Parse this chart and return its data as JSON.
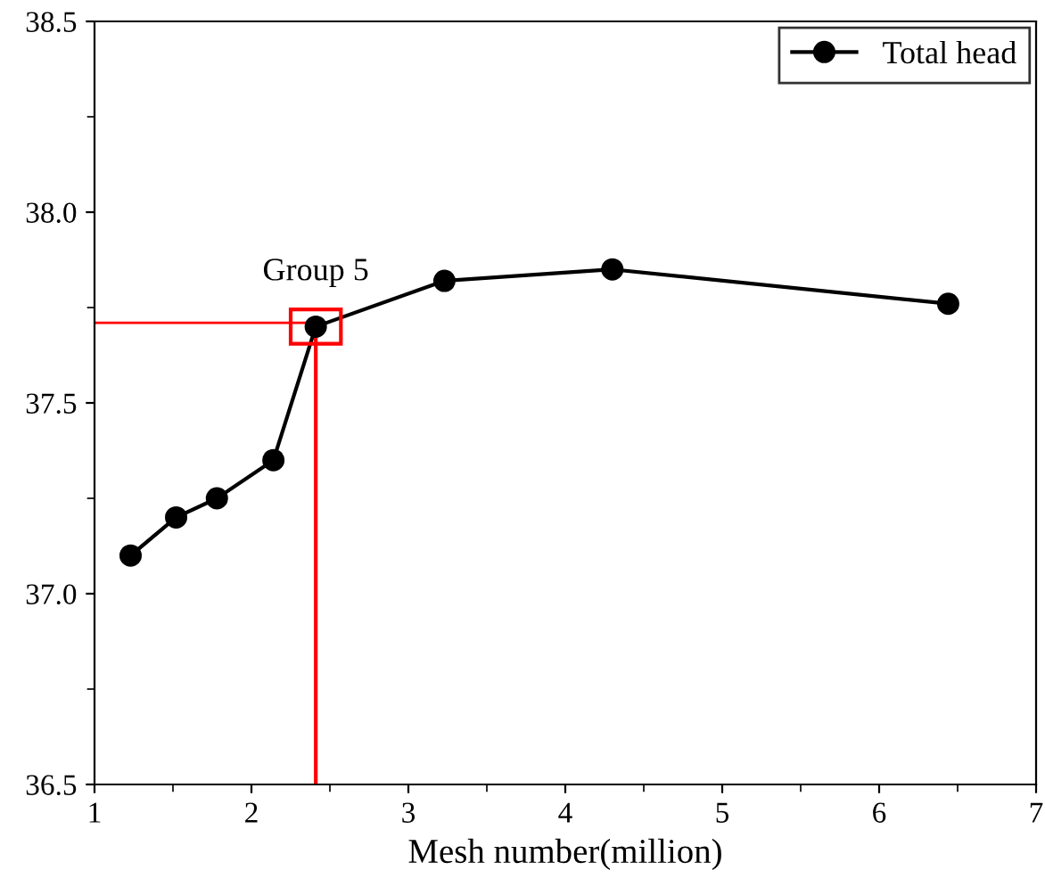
{
  "chart_data": {
    "type": "line",
    "xlabel": "Mesh number(million)",
    "x": [
      1.23,
      1.52,
      1.78,
      2.14,
      2.41,
      3.23,
      4.3,
      6.44
    ],
    "series": [
      {
        "name": "Total head",
        "color": "#000000",
        "values": [
          37.1,
          37.2,
          37.25,
          37.35,
          37.7,
          37.82,
          37.85,
          37.76
        ]
      }
    ],
    "xlim": [
      1,
      7
    ],
    "xticks": [
      1,
      2,
      3,
      4,
      5,
      6,
      7
    ],
    "ylim": [
      36.5,
      38.5
    ],
    "yticks": [
      36.5,
      {
        "value": 37.0,
        "label": "37.0"
      },
      37.5,
      {
        "value": 38.0,
        "label": "38.0"
      },
      38.5
    ],
    "ref_lines": [
      {
        "axis": "x",
        "value": 2.41,
        "color": "#ff0000"
      },
      {
        "axis": "y",
        "value": 37.71,
        "color": "#ff0000"
      }
    ],
    "annotations": [
      {
        "text": "Group 5",
        "x": 2.41,
        "y": 37.7
      }
    ],
    "marker": "circle",
    "line_style": "solid",
    "legend": "top right",
    "grid": false
  }
}
